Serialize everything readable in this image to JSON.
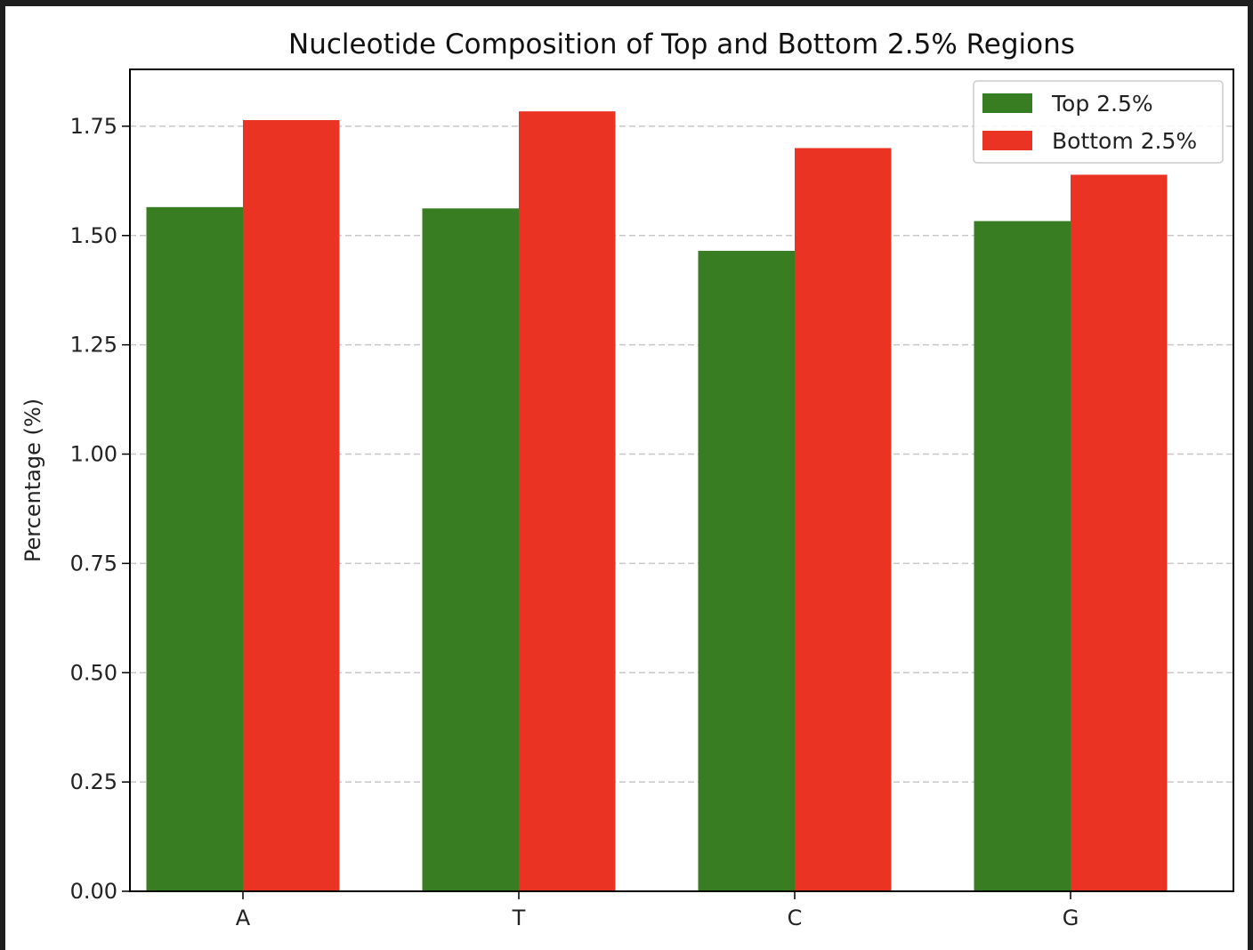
{
  "chart_data": {
    "type": "bar",
    "title": "Nucleotide Composition of Top and Bottom 2.5% Regions",
    "xlabel": "",
    "ylabel": "Percentage (%)",
    "categories": [
      "A",
      "T",
      "C",
      "G"
    ],
    "series": [
      {
        "name": "Top 2.5%",
        "color": "#387d21",
        "values": [
          1.565,
          1.562,
          1.465,
          1.533
        ]
      },
      {
        "name": "Bottom 2.5%",
        "color": "#ea3323",
        "values": [
          1.764,
          1.784,
          1.7,
          1.639
        ]
      }
    ],
    "ylim": [
      0,
      1.88
    ],
    "yticks": [
      "0.00",
      "0.25",
      "0.50",
      "0.75",
      "1.00",
      "1.25",
      "1.50",
      "1.75"
    ],
    "grid": "y, dashed",
    "legend_position": "top-right"
  }
}
